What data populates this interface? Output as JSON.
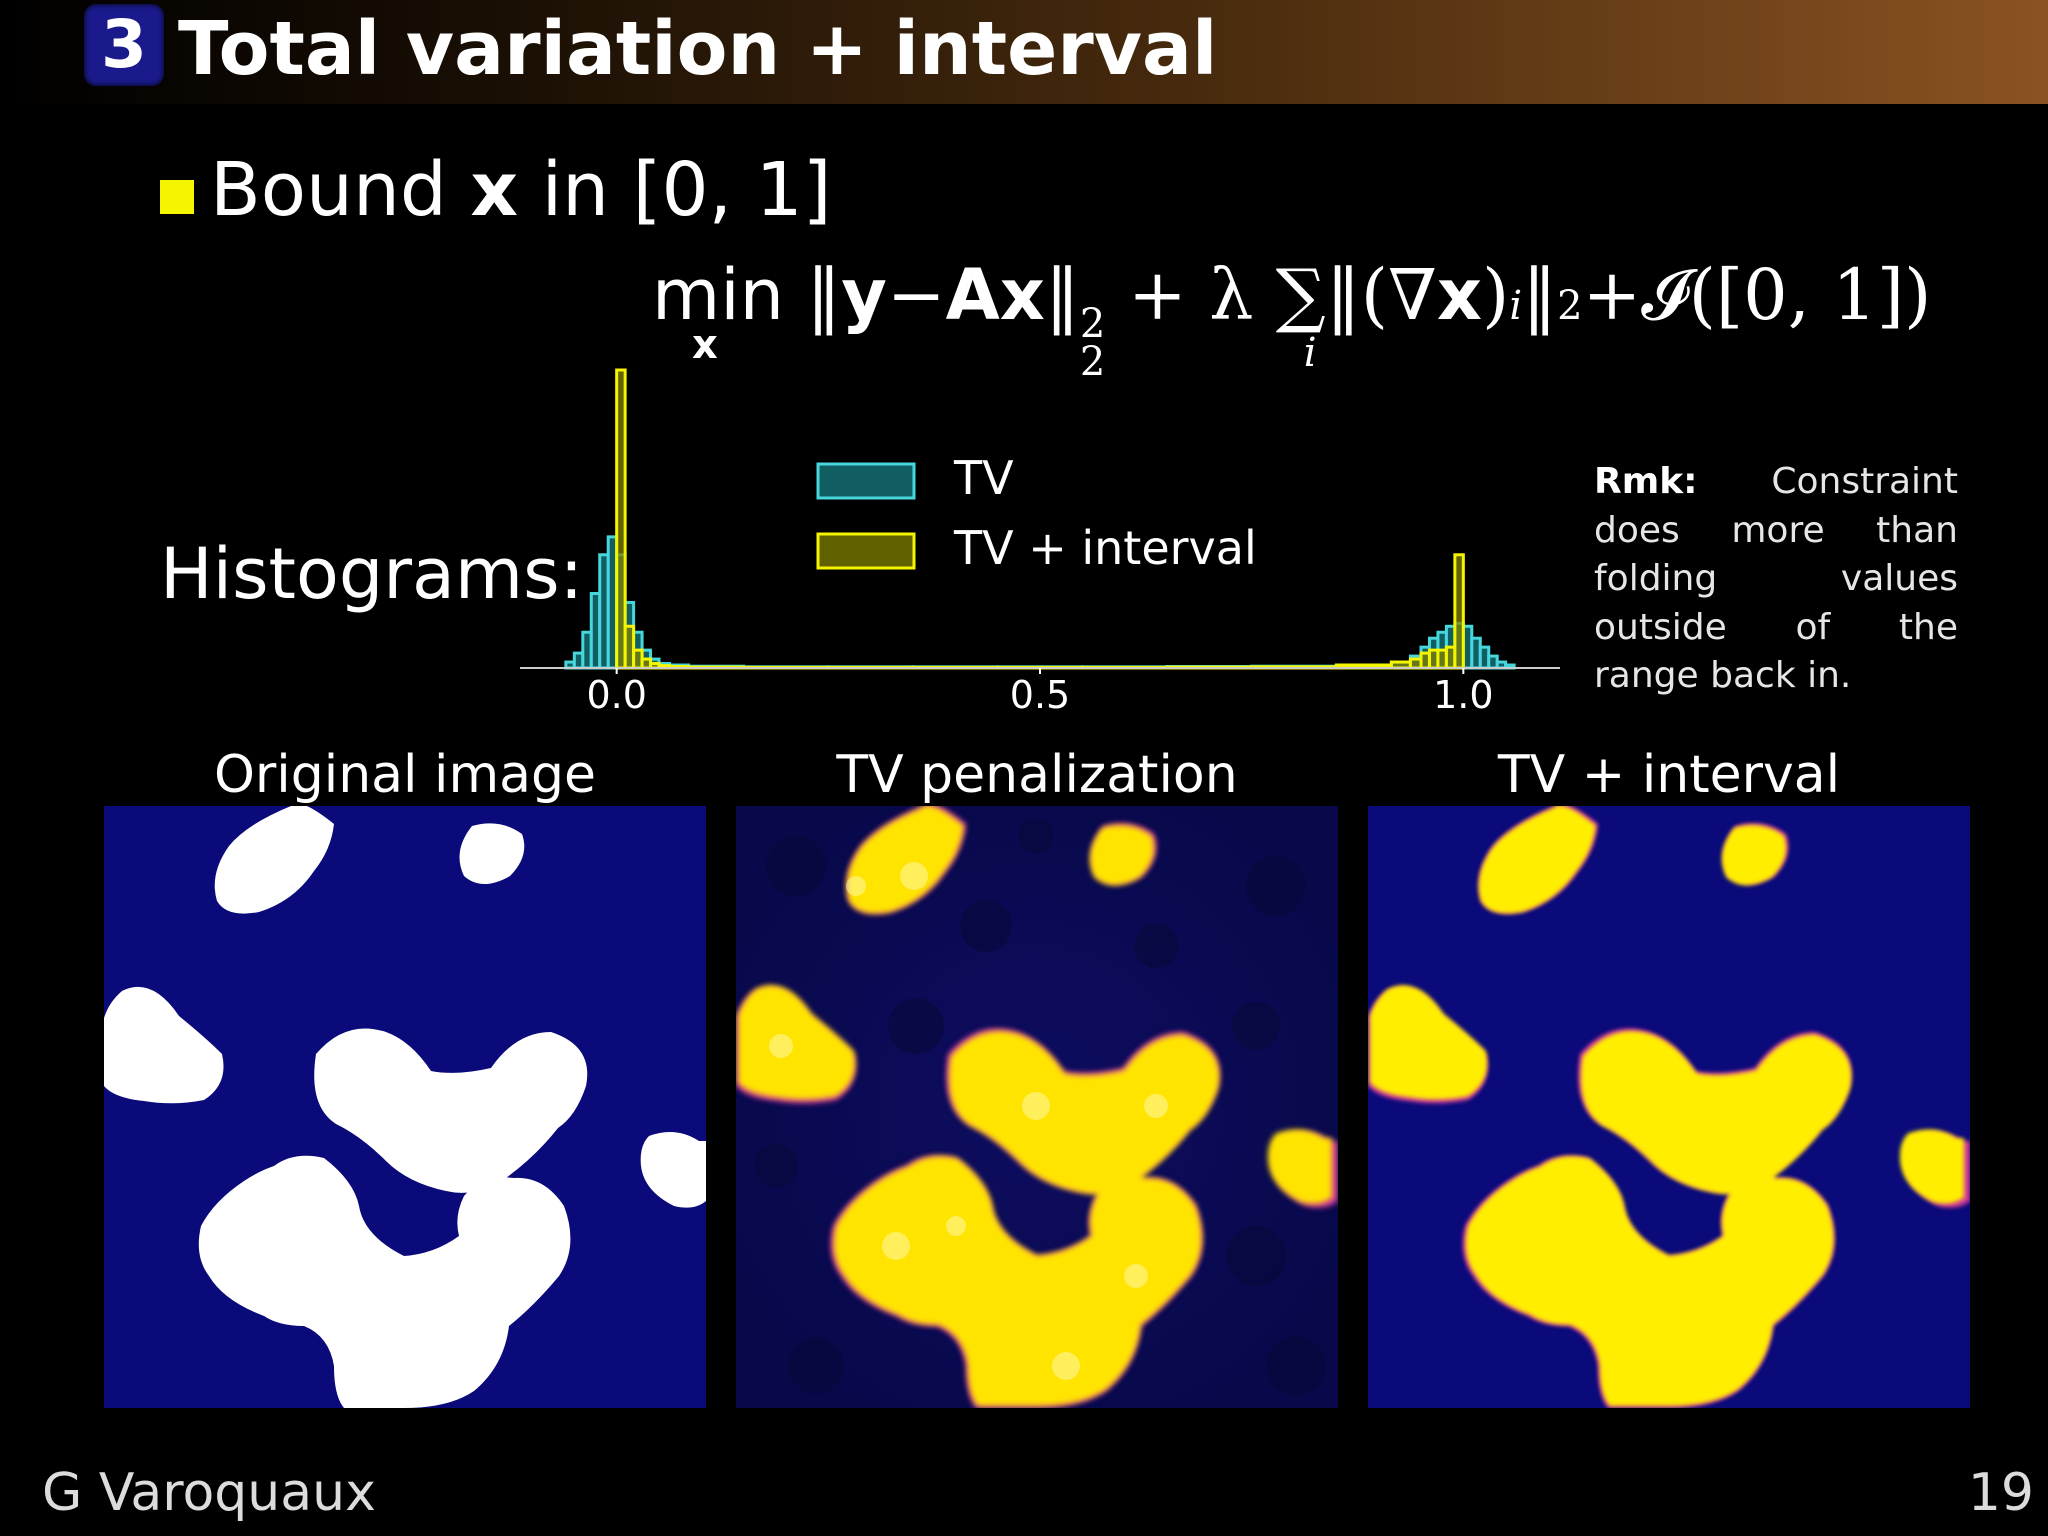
{
  "header": {
    "section_number": "3",
    "title": "Total variation + interval"
  },
  "bullet": {
    "prefix": "Bound ",
    "var": "x",
    "suffix": " in [0, 1]"
  },
  "formula": {
    "min": "min",
    "min_sub": "x",
    "text_a": " ‖",
    "y": "y",
    "minus": "−",
    "A": "A",
    "x": "x",
    "norm_close": "‖",
    "sup2": "2",
    "sub2": "2",
    "plus_lambda": " + λ ",
    "sum": "∑",
    "sum_sub": "i",
    "grad_open": "‖(∇",
    "gx": "x",
    "grad_close": ")",
    "gi": "i",
    "norm2": "‖",
    "norm2_sub": "2",
    "indicator": "+𝓘([0, 1])"
  },
  "histogram_label": "Histograms:",
  "chart_data": {
    "type": "bar",
    "xlabel": "",
    "ylabel": "",
    "x_ticks": [
      "0.0",
      "0.5",
      "1.0"
    ],
    "xlim": [
      -0.1,
      1.1
    ],
    "legend": {
      "placement": "top-center",
      "entries": [
        "TV",
        "TV + interval"
      ]
    },
    "bin_centers": [
      -0.055,
      -0.045,
      -0.035,
      -0.025,
      -0.015,
      -0.005,
      0.005,
      0.015,
      0.025,
      0.035,
      0.045,
      0.055,
      0.07,
      0.1,
      0.2,
      0.3,
      0.4,
      0.5,
      0.6,
      0.7,
      0.8,
      0.9,
      0.93,
      0.945,
      0.955,
      0.965,
      0.975,
      0.985,
      0.995,
      1.005,
      1.015,
      1.025,
      1.035,
      1.045,
      1.055
    ],
    "series": [
      {
        "name": "TV",
        "color": "#46d6dc",
        "values": [
          0.02,
          0.05,
          0.12,
          0.25,
          0.38,
          0.44,
          0.38,
          0.22,
          0.12,
          0.06,
          0.03,
          0.015,
          0.01,
          0.006,
          0.004,
          0.004,
          0.004,
          0.004,
          0.004,
          0.005,
          0.006,
          0.01,
          0.02,
          0.04,
          0.07,
          0.1,
          0.12,
          0.14,
          0.15,
          0.14,
          0.1,
          0.07,
          0.04,
          0.02,
          0.01
        ]
      },
      {
        "name": "TV + interval",
        "color": "#f5f500",
        "values": [
          0,
          0,
          0,
          0,
          0,
          0,
          1.0,
          0.14,
          0.06,
          0.03,
          0.015,
          0.008,
          0.005,
          0.003,
          0.002,
          0.002,
          0.002,
          0.002,
          0.002,
          0.003,
          0.004,
          0.01,
          0.02,
          0.03,
          0.05,
          0.06,
          0.06,
          0.07,
          0.38,
          0,
          0,
          0,
          0,
          0,
          0
        ]
      }
    ]
  },
  "remark": {
    "label": "Rmk:",
    "text": "Constraint does more than folding values outside of the range back in."
  },
  "panels": [
    {
      "title": "Original image"
    },
    {
      "title": "TV penalization"
    },
    {
      "title": "TV + interval"
    }
  ],
  "colors": {
    "panel_background": "#0a0a7a",
    "blob_white": "#ffffff",
    "blob_yellow": "#ffee00",
    "edge_magenta": "#d43b9a"
  },
  "footer": {
    "author": "G Varoquaux",
    "page": "19"
  }
}
